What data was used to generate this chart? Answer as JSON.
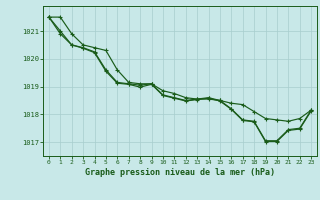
{
  "title": "",
  "xlabel": "Graphe pression niveau de la mer (hPa)",
  "background_color": "#c8e8e8",
  "grid_color": "#a8cece",
  "line_color": "#1a5c1a",
  "xlim": [
    -0.5,
    23.5
  ],
  "ylim": [
    1016.5,
    1021.9
  ],
  "yticks": [
    1017,
    1018,
    1019,
    1020,
    1021
  ],
  "xticks": [
    0,
    1,
    2,
    3,
    4,
    5,
    6,
    7,
    8,
    9,
    10,
    11,
    12,
    13,
    14,
    15,
    16,
    17,
    18,
    19,
    20,
    21,
    22,
    23
  ],
  "line1": [
    1021.5,
    1021.5,
    1020.9,
    1020.5,
    1020.4,
    1020.3,
    1019.6,
    1019.15,
    1019.1,
    1019.1,
    1018.85,
    1018.75,
    1018.6,
    1018.55,
    1018.55,
    1018.5,
    1018.4,
    1018.35,
    1018.1,
    1017.85,
    1017.8,
    1017.75,
    1017.85,
    1018.15
  ],
  "line2": [
    1021.5,
    1021.0,
    1020.5,
    1020.4,
    1020.25,
    1019.6,
    1019.15,
    1019.1,
    1019.05,
    1019.1,
    1018.7,
    1018.6,
    1018.5,
    1018.55,
    1018.6,
    1018.5,
    1018.2,
    1017.8,
    1017.75,
    1017.05,
    1017.05,
    1017.45,
    1017.5,
    1018.15
  ],
  "line3": [
    1021.5,
    1020.9,
    1020.5,
    1020.38,
    1020.22,
    1019.55,
    1019.12,
    1019.08,
    1018.98,
    1019.08,
    1018.68,
    1018.58,
    1018.48,
    1018.53,
    1018.58,
    1018.48,
    1018.18,
    1017.78,
    1017.73,
    1017.02,
    1017.02,
    1017.42,
    1017.47,
    1018.12
  ]
}
